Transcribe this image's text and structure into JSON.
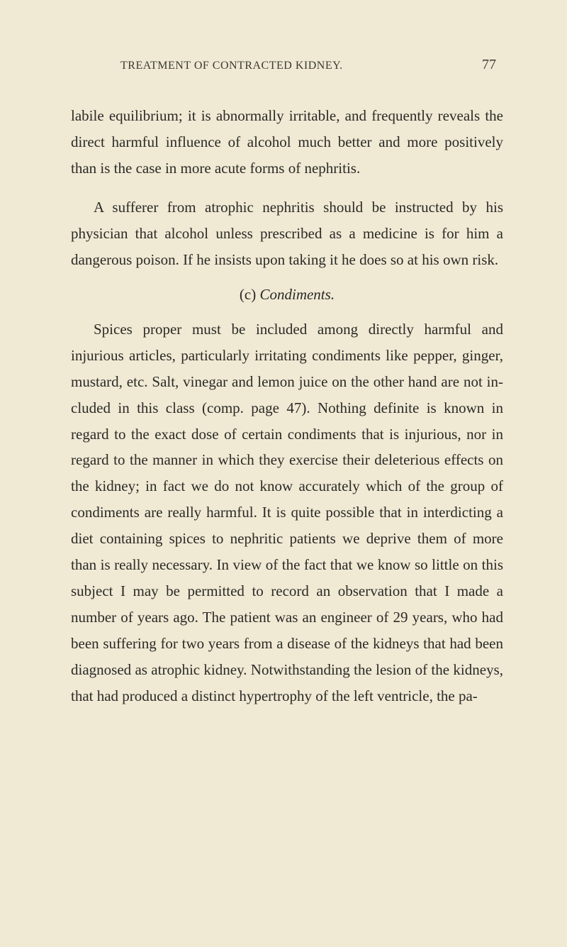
{
  "header": {
    "running_title": "TREATMENT OF CONTRACTED KIDNEY.",
    "page_number": "77"
  },
  "paragraphs": {
    "p1": "labile equilibrium; it is abnormally irritable, and fre­quently reveals the direct harmful influence of alcohol much better and more positively than is the case in more acute forms of nephritis.",
    "p2": "A sufferer from atrophic nephritis should be in­structed by his physician that alcohol unless prescribed as a medicine is for him a dangerous poison. If he insists upon taking it he does so at his own risk.",
    "p3": "Spices proper must be included among directly harmful and injurious articles, particularly irritating condiments like pepper, ginger, mustard, etc. Salt, vinegar and lemon juice on the other hand are not in­cluded in this class (comp. page 47). Nothing defi­nite is known in regard to the exact dose of certain condiments that is injurious, nor in regard to the man­ner in which they exercise their deleterious effects on the kidney; in fact we do not know accurately which of the group of condiments are really harmful. It is quite possible that in interdicting a diet containing spices to nephritic patients we deprive them of more than is really necessary. In view of the fact that we know so little on this subject I may be permitted to re­cord an observation that I made a number of years ago. The patient was an engineer of 29 years, who had been suffering for two years from a disease of the kidneys that had been diagnosed as atrophic kidney. Notwith­standing the lesion of the kidneys, that had produced a distinct hypertrophy of the left ventricle, the pa-"
  },
  "section": {
    "label": "(c)",
    "title": "Condiments."
  }
}
